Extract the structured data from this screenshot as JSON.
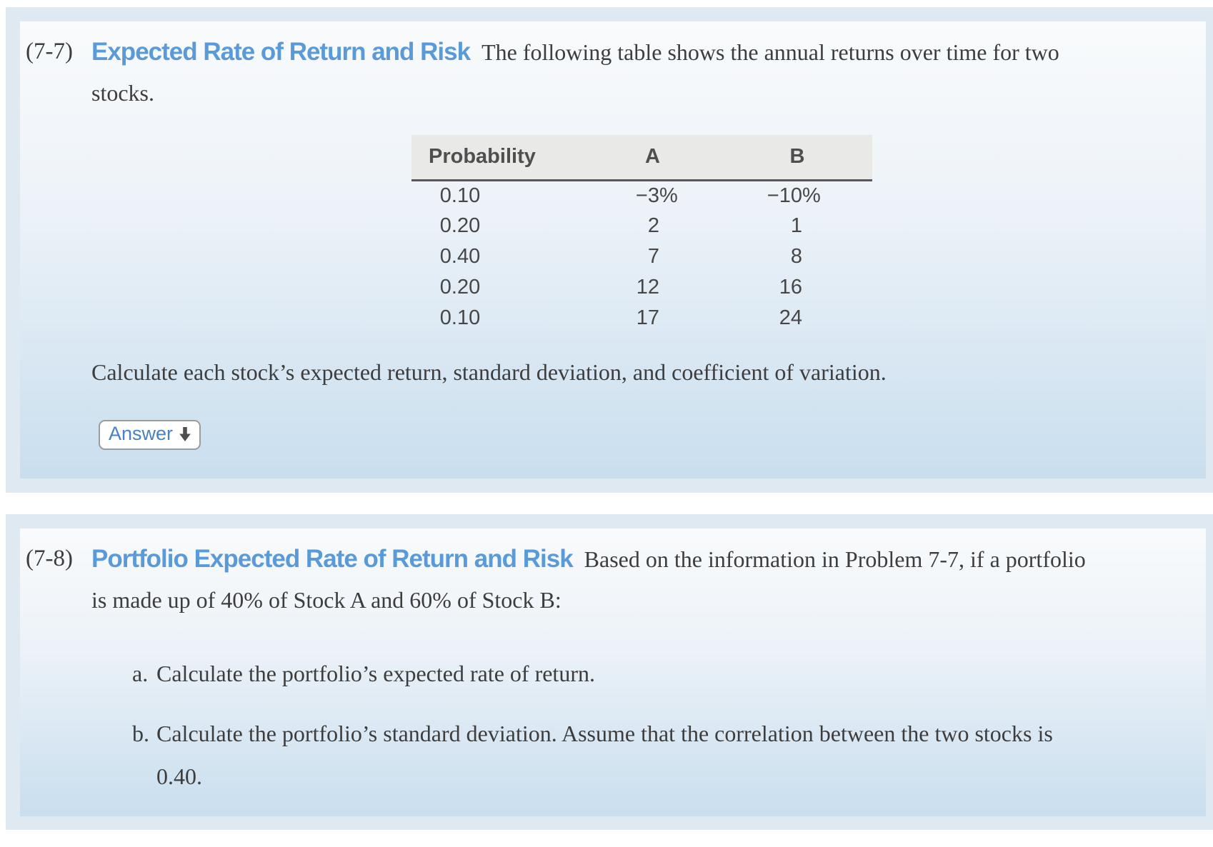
{
  "colors": {
    "accent_heading_blue": "#5a9ad8",
    "answer_link_blue": "#4a80c4",
    "panel_band": "#dee9f2",
    "panel_gradient_top": "#f9fbfc",
    "panel_gradient_bottom": "#c9deee",
    "table_header_bg": "#e9e9e8"
  },
  "problems": [
    {
      "number": "(7-7)",
      "title": "Expected Rate of Return and Risk",
      "intro": "The following table shows the annual returns over time for two stocks.",
      "table": {
        "headers": [
          "Probability",
          "A",
          "B"
        ],
        "rows": [
          [
            "0.10",
            "−3%",
            "−10%"
          ],
          [
            "0.20",
            "2",
            "1"
          ],
          [
            "0.40",
            "7",
            "8"
          ],
          [
            "0.20",
            "12",
            "16"
          ],
          [
            "0.10",
            "17",
            "24"
          ]
        ]
      },
      "outro": "Calculate each stock’s expected return, standard deviation, and coefficient of variation.",
      "answer_button_label": "Answer"
    },
    {
      "number": "(7-8)",
      "title": "Portfolio Expected Rate of Return and Risk",
      "intro": "Based on the information in Problem 7-7, if a portfolio is made up of 40% of Stock A and 60% of Stock B:",
      "items": [
        {
          "marker": "a.",
          "text": "Calculate the portfolio’s expected rate of return."
        },
        {
          "marker": "b.",
          "text": "Calculate the portfolio’s standard deviation. Assume that the correlation between the two stocks is 0.40."
        }
      ]
    }
  ]
}
